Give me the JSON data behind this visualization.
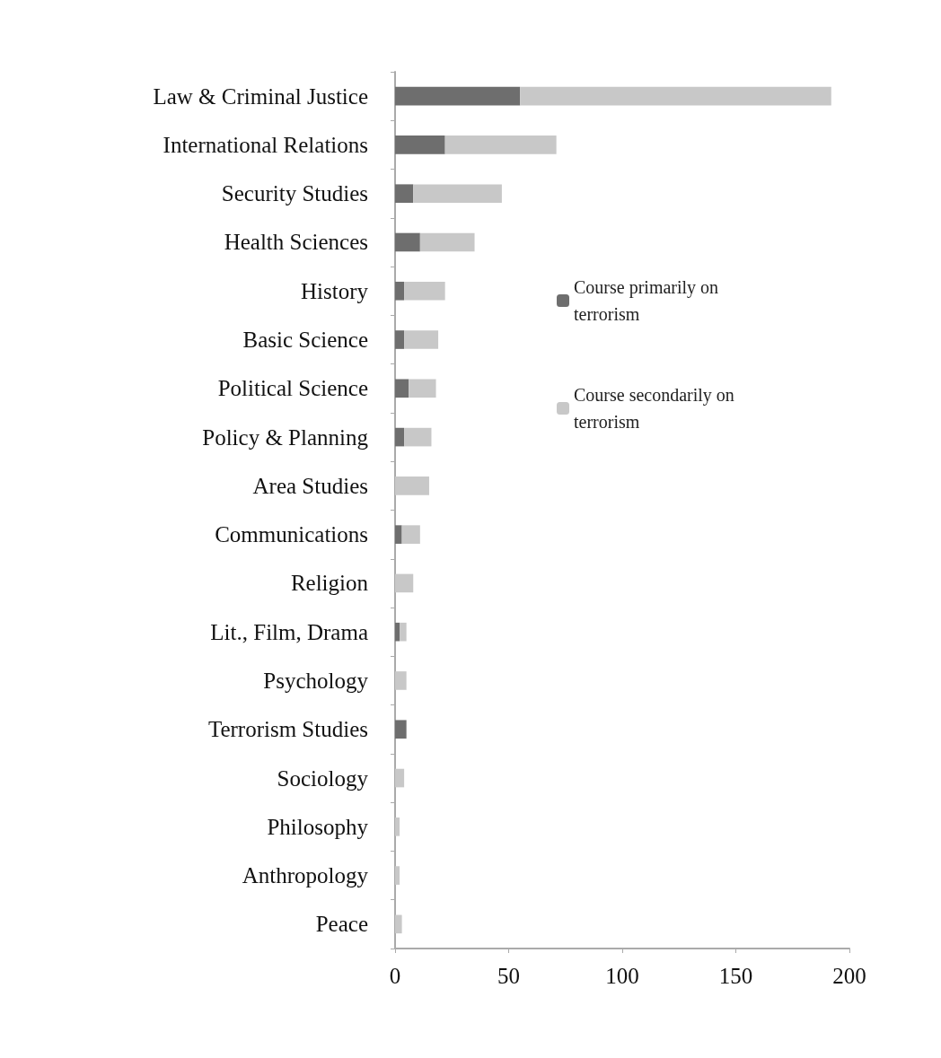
{
  "chart_data": {
    "type": "bar",
    "orientation": "horizontal",
    "stacked": true,
    "categories": [
      "Law & Criminal Justice",
      "International Relations",
      "Security Studies",
      "Health Sciences",
      "History",
      "Basic Science",
      "Political Science",
      "Policy & Planning",
      "Area Studies",
      "Communications",
      "Religion",
      "Lit., Film, Drama",
      "Psychology",
      "Terrorism Studies",
      "Sociology",
      "Philosophy",
      "Anthropology",
      "Peace"
    ],
    "series": [
      {
        "name": "Course primarily on terrorism",
        "color": "#6e6e6e",
        "values": [
          55,
          22,
          8,
          11,
          4,
          4,
          6,
          4,
          0,
          3,
          0,
          2,
          0,
          5,
          0,
          0,
          0,
          0
        ]
      },
      {
        "name": "Course secondarily on terrorism",
        "color": "#c8c8c8",
        "values": [
          137,
          49,
          39,
          24,
          18,
          15,
          12,
          12,
          15,
          8,
          8,
          3,
          5,
          0,
          4,
          2,
          2,
          3
        ]
      }
    ],
    "xlim": [
      0,
      200
    ],
    "xticks": [
      0,
      50,
      100,
      150,
      200
    ],
    "grid": false,
    "legend": "right"
  }
}
